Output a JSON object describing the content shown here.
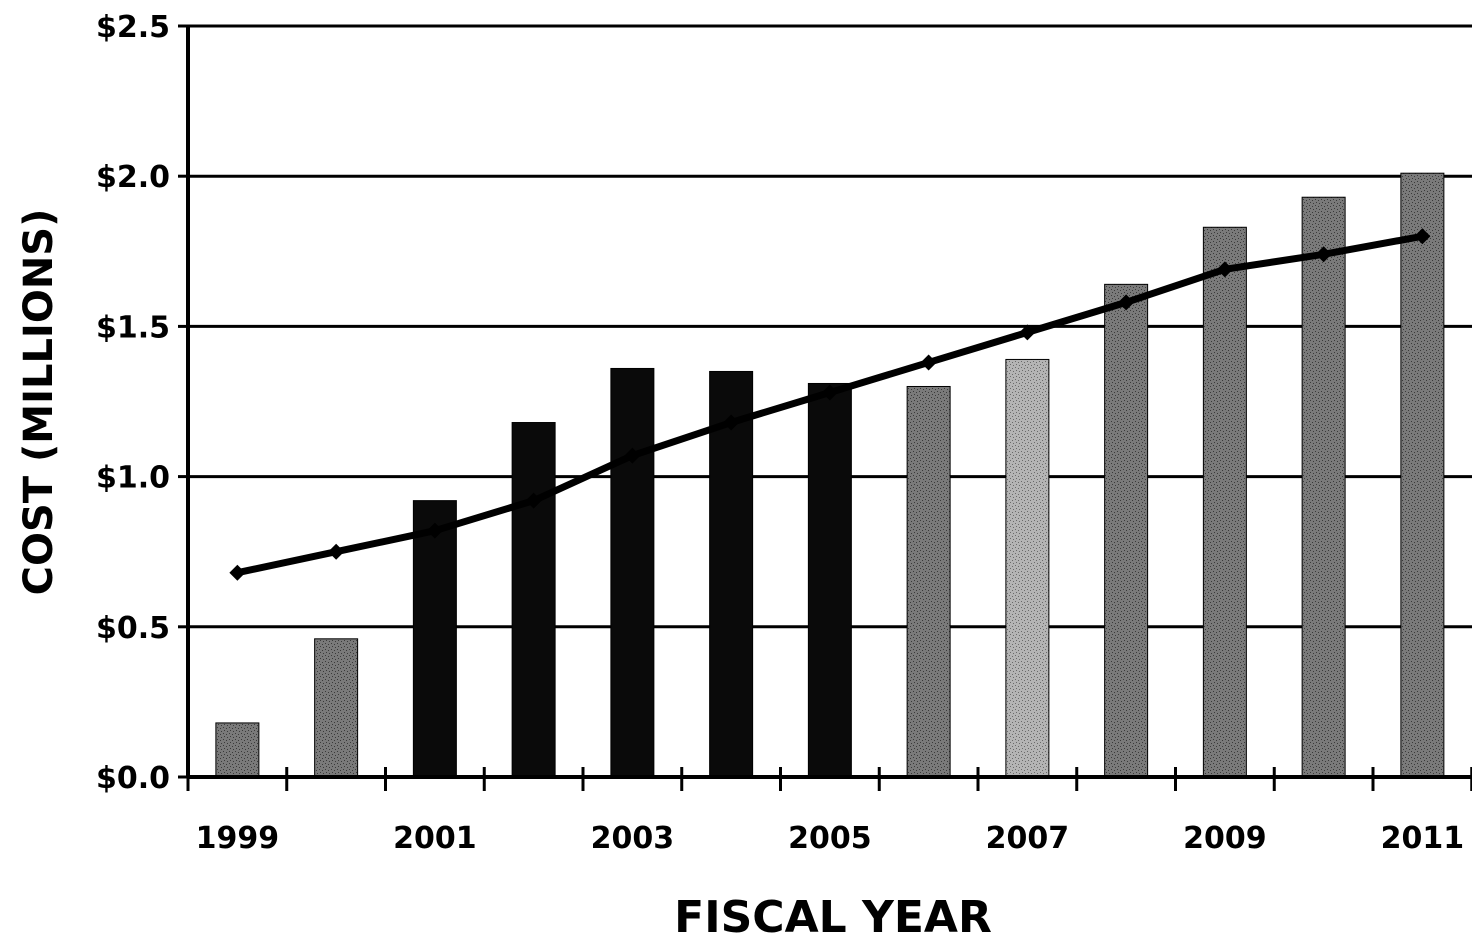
{
  "chart_data": {
    "type": "bar",
    "xlabel": "FISCAL YEAR",
    "ylabel": "COST (MILLIONS)",
    "ylim": [
      0,
      2.5
    ],
    "y_ticks": [
      "$0.0",
      "$0.5",
      "$1.0",
      "$1.5",
      "$2.0",
      "$2.5"
    ],
    "y_tick_values": [
      0,
      0.5,
      1.0,
      1.5,
      2.0,
      2.5
    ],
    "categories": [
      "1999",
      "2000",
      "2001",
      "2002",
      "2003",
      "2004",
      "2005",
      "2006",
      "2007",
      "2008",
      "2009",
      "2010",
      "2011"
    ],
    "x_tick_labels": [
      "1999",
      "",
      "2001",
      "",
      "2003",
      "",
      "2005",
      "",
      "2007",
      "",
      "2009",
      "",
      "2011"
    ],
    "grid": "horizontal",
    "series": [
      {
        "kind": "bar",
        "values": [
          0.18,
          0.46,
          0.92,
          1.18,
          1.36,
          1.35,
          1.31,
          1.3,
          1.39,
          1.64,
          1.83,
          1.93,
          2.01
        ],
        "colors": [
          "#7a7a7a",
          "#7a7a7a",
          "#0a0a0a",
          "#0a0a0a",
          "#0a0a0a",
          "#0a0a0a",
          "#0a0a0a",
          "#7a7a7a",
          "#b4b4b4",
          "#7a7a7a",
          "#7a7a7a",
          "#7a7a7a",
          "#7a7a7a"
        ]
      },
      {
        "kind": "line",
        "values": [
          0.68,
          0.75,
          0.82,
          0.92,
          1.07,
          1.18,
          1.28,
          1.38,
          1.48,
          1.58,
          1.69,
          1.74,
          1.8
        ],
        "color": "#000000",
        "marker": "diamond"
      }
    ]
  }
}
